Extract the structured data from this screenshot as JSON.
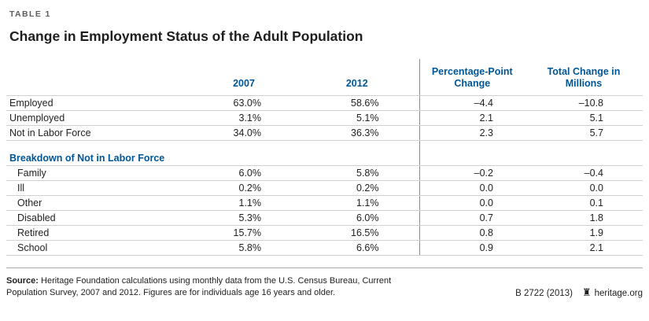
{
  "header": {
    "table_label": "TABLE 1",
    "title": "Change in Employment Status of the Adult Population"
  },
  "table": {
    "col_2007": "2007",
    "col_2012": "2012",
    "col_pp": "Percentage-Point Change",
    "col_total": "Total Change in Millions",
    "main_rows": [
      {
        "label": "Employed",
        "v2007": "63.0%",
        "v2012": "58.6%",
        "pp": "–4.4",
        "total": "–10.8"
      },
      {
        "label": "Unemployed",
        "v2007": "3.1%",
        "v2012": "5.1%",
        "pp": "2.1",
        "total": "5.1"
      },
      {
        "label": "Not in Labor Force",
        "v2007": "34.0%",
        "v2012": "36.3%",
        "pp": "2.3",
        "total": "5.7"
      }
    ],
    "section_header": "Breakdown of Not in Labor Force",
    "sub_rows": [
      {
        "label": "Family",
        "v2007": "6.0%",
        "v2012": "5.8%",
        "pp": "–0.2",
        "total": "–0.4"
      },
      {
        "label": "Ill",
        "v2007": "0.2%",
        "v2012": "0.2%",
        "pp": "0.0",
        "total": "0.0"
      },
      {
        "label": "Other",
        "v2007": "1.1%",
        "v2012": "1.1%",
        "pp": "0.0",
        "total": "0.1"
      },
      {
        "label": "Disabled",
        "v2007": "5.3%",
        "v2012": "6.0%",
        "pp": "0.7",
        "total": "1.8"
      },
      {
        "label": "Retired",
        "v2007": "15.7%",
        "v2012": "16.5%",
        "pp": "0.8",
        "total": "1.9"
      },
      {
        "label": "School",
        "v2007": "5.8%",
        "v2012": "6.6%",
        "pp": "0.9",
        "total": "2.1"
      }
    ]
  },
  "footer": {
    "source_label": "Source:",
    "source_text": "Heritage Foundation calculations using monthly data from the U.S. Census Bureau, Current Population Survey, 2007 and 2012. Figures are for individuals age 16 years and older.",
    "report_id": "B 2722 (2013)",
    "website": "heritage.org"
  },
  "colors": {
    "accent_blue": "#005696",
    "title_text": "#1e1e1e",
    "body_text": "#222222",
    "row_hairline": "#d0d0d0",
    "column_divider": "#8c8c8c",
    "footer_rule": "#a9a9a9"
  },
  "chart_data": {
    "type": "table",
    "title": "Change in Employment Status of the Adult Population",
    "columns": [
      "Category",
      "2007 (%)",
      "2012 (%)",
      "Percentage-Point Change",
      "Total Change in Millions"
    ],
    "rows": [
      [
        "Employed",
        63.0,
        58.6,
        -4.4,
        -10.8
      ],
      [
        "Unemployed",
        3.1,
        5.1,
        2.1,
        5.1
      ],
      [
        "Not in Labor Force",
        34.0,
        36.3,
        2.3,
        5.7
      ],
      [
        "Family",
        6.0,
        5.8,
        -0.2,
        -0.4
      ],
      [
        "Ill",
        0.2,
        0.2,
        0.0,
        0.0
      ],
      [
        "Other",
        1.1,
        1.1,
        0.0,
        0.1
      ],
      [
        "Disabled",
        5.3,
        6.0,
        0.7,
        1.8
      ],
      [
        "Retired",
        15.7,
        16.5,
        0.8,
        1.9
      ],
      [
        "School",
        5.8,
        6.6,
        0.9,
        2.1
      ]
    ],
    "sections": [
      {
        "name": "",
        "row_indexes": [
          0,
          1,
          2
        ]
      },
      {
        "name": "Breakdown of Not in Labor Force",
        "row_indexes": [
          3,
          4,
          5,
          6,
          7,
          8
        ]
      }
    ],
    "source": "Heritage Foundation calculations using monthly data from the U.S. Census Bureau, Current Population Survey, 2007 and 2012. Figures are for individuals age 16 years and older."
  }
}
